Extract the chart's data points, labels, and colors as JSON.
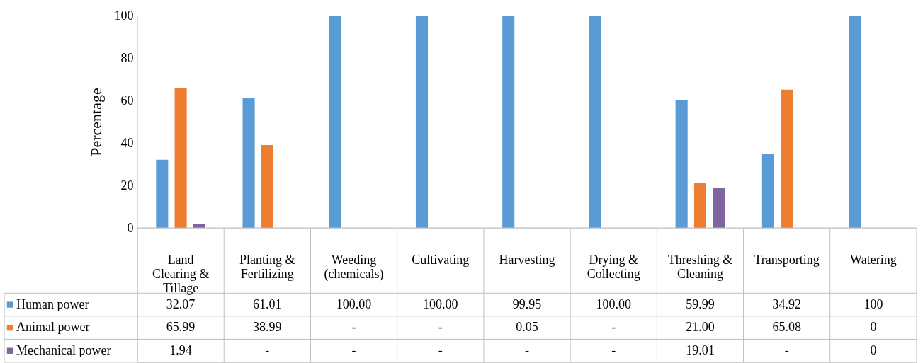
{
  "chart_data": {
    "type": "bar",
    "ylabel": "Percentage",
    "ylim": [
      0,
      100
    ],
    "yticks": [
      0,
      20,
      40,
      60,
      80,
      100
    ],
    "grid": false,
    "legend": "bottom",
    "categories": [
      "Land Clearing & Tillage",
      "Planting & Fertilizing",
      "Weeding (chemicals)",
      "Cultivating",
      "Harvesting",
      "Drying & Collecting",
      "Threshing & Cleaning",
      "Transporting",
      "Watering"
    ],
    "series": [
      {
        "name": "Human power",
        "color": "#5b9bd5",
        "values": [
          32.07,
          61.01,
          100.0,
          100.0,
          99.95,
          100.0,
          59.99,
          34.92,
          100
        ],
        "value_labels": [
          "32.07",
          "61.01",
          "100.00",
          "100.00",
          "99.95",
          "100.00",
          "59.99",
          "34.92",
          "100"
        ]
      },
      {
        "name": "Animal power",
        "color": "#ed7d31",
        "values": [
          65.99,
          38.99,
          null,
          null,
          0.05,
          null,
          21.0,
          65.08,
          0
        ],
        "value_labels": [
          "65.99",
          "38.99",
          "-",
          "-",
          "0.05",
          "-",
          "21.00",
          "65.08",
          "0"
        ]
      },
      {
        "name": "Mechanical power",
        "color": "#8064a2",
        "values": [
          1.94,
          null,
          null,
          null,
          null,
          null,
          19.01,
          null,
          0
        ],
        "value_labels": [
          "1.94",
          "-",
          "-",
          "-",
          "-",
          "-",
          "19.01",
          "-",
          "0"
        ]
      }
    ]
  }
}
